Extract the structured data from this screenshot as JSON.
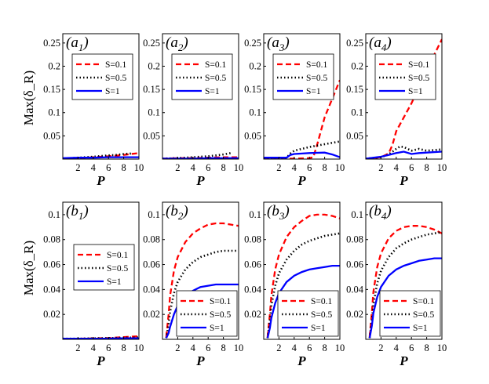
{
  "figure": {
    "row_a_ylabel": "Max(δ_R)",
    "row_b_ylabel": "Max(δ_R)",
    "legend_labels": [
      "S=0.1",
      "S=0.5",
      "S=1"
    ]
  },
  "colors": {
    "S=0.1": "#ff0000",
    "S=0.5": "#000000",
    "S=1": "#0000ff",
    "axis": "#000000"
  },
  "chart_data": [
    {
      "type": "line",
      "panel_label": "(a1)",
      "title": "",
      "xlabel": "P",
      "ylabel": "Max(δ_R)",
      "xlim": [
        0,
        10
      ],
      "ylim": [
        0,
        0.27
      ],
      "xticks": [
        "2",
        "4",
        "6",
        "8",
        "10"
      ],
      "yticks": [
        "0.05",
        "0.1",
        "0.15",
        "0.2",
        "0.25"
      ],
      "ytick_values": [
        0.05,
        0.1,
        0.15,
        0.2,
        0.25
      ],
      "legend_position": "upper-middle",
      "series": [
        {
          "name": "S=0.1",
          "style": "dashed",
          "x": [
            0,
            2,
            4,
            6,
            8,
            10
          ],
          "y": [
            0.001,
            0.002,
            0.004,
            0.006,
            0.009,
            0.013
          ]
        },
        {
          "name": "S=0.5",
          "style": "dotted",
          "x": [
            0,
            2,
            4,
            6,
            7,
            8,
            9
          ],
          "y": [
            0.001,
            0.003,
            0.005,
            0.008,
            0.009,
            0.011,
            0.012
          ]
        },
        {
          "name": "S=1",
          "style": "solid",
          "x": [
            0,
            2,
            4,
            6,
            8,
            10
          ],
          "y": [
            0.002,
            0.003,
            0.003,
            0.004,
            0.004,
            0.004
          ]
        }
      ]
    },
    {
      "type": "line",
      "panel_label": "(a2)",
      "title": "",
      "xlabel": "P",
      "ylabel": "",
      "xlim": [
        0,
        10
      ],
      "ylim": [
        0,
        0.27
      ],
      "xticks": [
        "2",
        "4",
        "6",
        "8",
        "10"
      ],
      "yticks": [
        "0.05",
        "0.1",
        "0.15",
        "0.2",
        "0.25"
      ],
      "ytick_values": [
        0.05,
        0.1,
        0.15,
        0.2,
        0.25
      ],
      "legend_position": "upper-middle",
      "series": [
        {
          "name": "S=0.1",
          "style": "dashed",
          "x": [
            0,
            2,
            4,
            6,
            8,
            10
          ],
          "y": [
            0.001,
            0.002,
            0.002,
            0.003,
            0.004,
            0.004
          ]
        },
        {
          "name": "S=0.5",
          "style": "dotted",
          "x": [
            0,
            2,
            4,
            6,
            7,
            8,
            9
          ],
          "y": [
            0.001,
            0.002,
            0.004,
            0.006,
            0.008,
            0.01,
            0.013
          ]
        },
        {
          "name": "S=1",
          "style": "solid",
          "x": [
            0,
            2,
            4,
            6,
            8,
            10
          ],
          "y": [
            0.001,
            0.001,
            0.001,
            0.002,
            0.002,
            0.002
          ]
        }
      ]
    },
    {
      "type": "line",
      "panel_label": "(a3)",
      "title": "",
      "xlabel": "P",
      "ylabel": "",
      "xlim": [
        0,
        10
      ],
      "ylim": [
        0,
        0.27
      ],
      "xticks": [
        "2",
        "4",
        "6",
        "8",
        "10"
      ],
      "yticks": [
        "0.05",
        "0.1",
        "0.15",
        "0.2",
        "0.25"
      ],
      "ytick_values": [
        0.05,
        0.1,
        0.15,
        0.2,
        0.25
      ],
      "legend_position": "upper-middle",
      "series": [
        {
          "name": "S=0.1",
          "style": "dashed",
          "x": [
            0,
            2,
            4,
            6,
            6.5,
            7,
            8,
            9,
            10
          ],
          "y": [
            0.001,
            0.001,
            0.001,
            0.002,
            0.004,
            0.03,
            0.09,
            0.13,
            0.17
          ]
        },
        {
          "name": "S=0.5",
          "style": "dotted",
          "x": [
            0,
            2,
            3,
            3.5,
            4,
            6,
            8,
            10
          ],
          "y": [
            0.002,
            0.002,
            0.003,
            0.012,
            0.018,
            0.026,
            0.032,
            0.038
          ]
        },
        {
          "name": "S=1",
          "style": "solid",
          "x": [
            0,
            2,
            3,
            3.5,
            4,
            6,
            8,
            9,
            10
          ],
          "y": [
            0.003,
            0.003,
            0.003,
            0.009,
            0.011,
            0.013,
            0.014,
            0.01,
            0.004
          ]
        }
      ]
    },
    {
      "type": "line",
      "panel_label": "(a4)",
      "title": "",
      "xlabel": "P",
      "ylabel": "",
      "xlim": [
        0,
        10
      ],
      "ylim": [
        0,
        0.27
      ],
      "xticks": [
        "2",
        "4",
        "6",
        "8",
        "10"
      ],
      "yticks": [
        "0.05",
        "0.1",
        "0.15",
        "0.2",
        "0.25"
      ],
      "ytick_values": [
        0.05,
        0.1,
        0.15,
        0.2,
        0.25
      ],
      "legend_position": "upper-middle",
      "series": [
        {
          "name": "S=0.1",
          "style": "dashed",
          "x": [
            0,
            1,
            2,
            3,
            3.5,
            4,
            5,
            6,
            7,
            8,
            9,
            10
          ],
          "y": [
            0.001,
            0.002,
            0.004,
            0.012,
            0.03,
            0.06,
            0.09,
            0.12,
            0.155,
            0.19,
            0.225,
            0.258
          ]
        },
        {
          "name": "S=0.5",
          "style": "dotted",
          "x": [
            0,
            2,
            3,
            4,
            4.5,
            5,
            6,
            7,
            8,
            10
          ],
          "y": [
            0.001,
            0.004,
            0.01,
            0.022,
            0.027,
            0.026,
            0.018,
            0.022,
            0.018,
            0.021
          ]
        },
        {
          "name": "S=1",
          "style": "solid",
          "x": [
            0,
            2,
            3,
            4,
            5,
            6,
            7,
            8,
            10
          ],
          "y": [
            0.001,
            0.005,
            0.009,
            0.013,
            0.016,
            0.011,
            0.013,
            0.014,
            0.016
          ]
        }
      ]
    },
    {
      "type": "line",
      "panel_label": "(b1)",
      "title": "",
      "xlabel": "P",
      "ylabel": "Max(δ_R)",
      "xlim": [
        0,
        10
      ],
      "ylim": [
        0,
        0.11
      ],
      "xticks": [
        "2",
        "4",
        "6",
        "8",
        "10"
      ],
      "yticks": [
        "0.02",
        "0.04",
        "0.06",
        "0.08",
        "0.1"
      ],
      "ytick_values": [
        0.02,
        0.04,
        0.06,
        0.08,
        0.1
      ],
      "legend_position": "middle",
      "series": [
        {
          "name": "S=0.1",
          "style": "dashed",
          "x": [
            0,
            2,
            4,
            6,
            8,
            10
          ],
          "y": [
            0.0005,
            0.0005,
            0.0008,
            0.001,
            0.0018,
            0.0025
          ]
        },
        {
          "name": "S=0.5",
          "style": "dotted",
          "x": [
            0,
            2,
            4,
            6,
            8,
            10
          ],
          "y": [
            0.0005,
            0.0005,
            0.0008,
            0.001,
            0.0013,
            0.0015
          ]
        },
        {
          "name": "S=1",
          "style": "solid",
          "x": [
            0,
            2,
            4,
            6,
            8,
            10
          ],
          "y": [
            0.0005,
            0.0005,
            0.0005,
            0.0006,
            0.0008,
            0.0008
          ]
        }
      ]
    },
    {
      "type": "line",
      "panel_label": "(b2)",
      "title": "",
      "xlabel": "P",
      "ylabel": "",
      "xlim": [
        0,
        10
      ],
      "ylim": [
        0,
        0.11
      ],
      "xticks": [
        "2",
        "4",
        "6",
        "8",
        "10"
      ],
      "yticks": [
        "0.02",
        "0.04",
        "0.06",
        "0.08",
        "0.1"
      ],
      "ytick_values": [
        0.02,
        0.04,
        0.06,
        0.08,
        0.1
      ],
      "legend_position": "bottom-right",
      "series": [
        {
          "name": "S=0.1",
          "style": "dashed",
          "x": [
            0.5,
            0.8,
            1,
            1.5,
            2,
            3,
            4,
            5,
            6,
            7,
            8,
            9,
            10
          ],
          "y": [
            0.002,
            0.02,
            0.035,
            0.055,
            0.066,
            0.078,
            0.085,
            0.089,
            0.092,
            0.093,
            0.093,
            0.092,
            0.091
          ]
        },
        {
          "name": "S=0.5",
          "style": "dotted",
          "x": [
            0.5,
            0.8,
            1,
            1.5,
            2,
            3,
            4,
            5,
            6,
            7,
            8,
            9,
            10
          ],
          "y": [
            0.001,
            0.012,
            0.022,
            0.037,
            0.046,
            0.056,
            0.062,
            0.066,
            0.068,
            0.07,
            0.071,
            0.071,
            0.071
          ]
        },
        {
          "name": "S=1",
          "style": "solid",
          "x": [
            0.5,
            0.8,
            1,
            1.5,
            2,
            3,
            4,
            5,
            6,
            7,
            8,
            9,
            10
          ],
          "y": [
            0.001,
            0.005,
            0.01,
            0.02,
            0.027,
            0.035,
            0.039,
            0.042,
            0.043,
            0.044,
            0.044,
            0.044,
            0.044
          ]
        }
      ]
    },
    {
      "type": "line",
      "panel_label": "(b3)",
      "title": "",
      "xlabel": "P",
      "ylabel": "",
      "xlim": [
        0,
        10
      ],
      "ylim": [
        0,
        0.11
      ],
      "xticks": [
        "2",
        "4",
        "6",
        "8",
        "10"
      ],
      "yticks": [
        "0.02",
        "0.04",
        "0.06",
        "0.08",
        "0.1"
      ],
      "ytick_values": [
        0.02,
        0.04,
        0.06,
        0.08,
        0.1
      ],
      "legend_position": "bottom-right",
      "series": [
        {
          "name": "S=0.1",
          "style": "dashed",
          "x": [
            0.5,
            0.8,
            1,
            1.5,
            2,
            3,
            4,
            5,
            6,
            7,
            8,
            9,
            10
          ],
          "y": [
            0.002,
            0.02,
            0.035,
            0.056,
            0.068,
            0.082,
            0.09,
            0.095,
            0.099,
            0.1,
            0.1,
            0.099,
            0.097
          ]
        },
        {
          "name": "S=0.5",
          "style": "dotted",
          "x": [
            0.5,
            0.8,
            1,
            1.5,
            2,
            3,
            4,
            5,
            6,
            7,
            8,
            9,
            10
          ],
          "y": [
            0.001,
            0.015,
            0.027,
            0.043,
            0.053,
            0.064,
            0.071,
            0.076,
            0.079,
            0.081,
            0.083,
            0.084,
            0.085
          ]
        },
        {
          "name": "S=1",
          "style": "solid",
          "x": [
            0.5,
            0.8,
            1,
            1.5,
            2,
            3,
            4,
            5,
            6,
            7,
            8,
            9,
            10
          ],
          "y": [
            0.001,
            0.009,
            0.017,
            0.029,
            0.037,
            0.046,
            0.051,
            0.054,
            0.056,
            0.057,
            0.058,
            0.059,
            0.059
          ]
        }
      ]
    },
    {
      "type": "line",
      "panel_label": "(b4)",
      "title": "",
      "xlabel": "P",
      "ylabel": "",
      "xlim": [
        0,
        10
      ],
      "ylim": [
        0,
        0.11
      ],
      "xticks": [
        "2",
        "4",
        "6",
        "8",
        "10"
      ],
      "yticks": [
        "0.02",
        "0.04",
        "0.06",
        "0.08",
        "0.1"
      ],
      "ytick_values": [
        0.02,
        0.04,
        0.06,
        0.08,
        0.1
      ],
      "legend_position": "bottom-right",
      "series": [
        {
          "name": "S=0.1",
          "style": "dashed",
          "x": [
            0.5,
            0.8,
            1,
            1.5,
            2,
            3,
            4,
            5,
            6,
            7,
            8,
            9,
            10
          ],
          "y": [
            0.002,
            0.022,
            0.038,
            0.058,
            0.069,
            0.081,
            0.087,
            0.09,
            0.091,
            0.091,
            0.09,
            0.088,
            0.085
          ]
        },
        {
          "name": "S=0.5",
          "style": "dotted",
          "x": [
            0.5,
            0.8,
            1,
            1.5,
            2,
            3,
            4,
            5,
            6,
            7,
            8,
            9,
            10
          ],
          "y": [
            0.001,
            0.015,
            0.028,
            0.045,
            0.055,
            0.066,
            0.073,
            0.077,
            0.08,
            0.082,
            0.084,
            0.085,
            0.086
          ]
        },
        {
          "name": "S=1",
          "style": "solid",
          "x": [
            0.5,
            0.8,
            1,
            1.5,
            2,
            3,
            4,
            5,
            6,
            7,
            8,
            9,
            10
          ],
          "y": [
            0.001,
            0.011,
            0.021,
            0.034,
            0.042,
            0.051,
            0.056,
            0.059,
            0.061,
            0.063,
            0.064,
            0.065,
            0.065
          ]
        }
      ]
    }
  ]
}
